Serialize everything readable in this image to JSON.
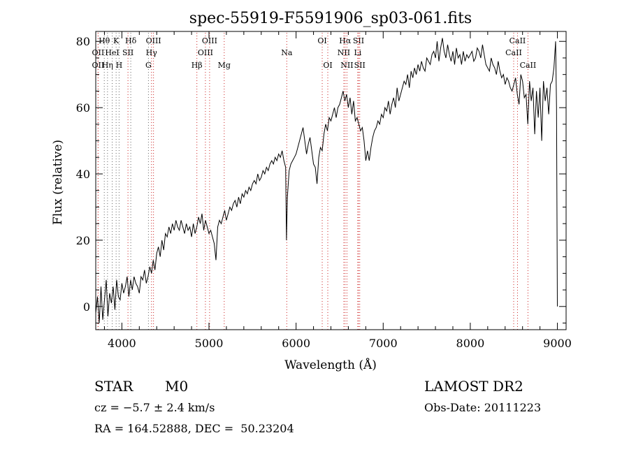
{
  "chart_data": {
    "type": "line",
    "title": "spec-55919-F5591906_sp03-061.fits",
    "xlabel": "Wavelength (Å)",
    "ylabel": "Flux (relative)",
    "xlim": [
      3700,
      9100
    ],
    "ylim": [
      -7,
      83
    ],
    "xticks": [
      4000,
      5000,
      6000,
      7000,
      8000,
      9000
    ],
    "yticks": [
      0,
      20,
      40,
      60,
      80
    ],
    "grid": false,
    "line_markers": [
      {
        "label": "Hθ",
        "x": 3798,
        "row": 1,
        "color": "#666666"
      },
      {
        "label": "K",
        "x": 3934,
        "row": 1,
        "color": "#666666"
      },
      {
        "label": "Hδ",
        "x": 4102,
        "row": 1,
        "color": "#666666"
      },
      {
        "label": "OIII",
        "x": 4363,
        "row": 1,
        "color": "#cc2222"
      },
      {
        "label": "OIII",
        "x": 5007,
        "row": 1,
        "color": "#cc2222"
      },
      {
        "label": "OI",
        "x": 6300,
        "row": 1,
        "color": "#cc2222"
      },
      {
        "label": "Hα",
        "x": 6563,
        "row": 1,
        "color": "#cc2222"
      },
      {
        "label": "SII",
        "x": 6717,
        "row": 1,
        "color": "#cc2222"
      },
      {
        "label": "CaII",
        "x": 8542,
        "row": 1,
        "color": "#cc2222"
      },
      {
        "label": "OII",
        "x": 3727,
        "row": 2,
        "color": "#cc2222"
      },
      {
        "label": "HeI",
        "x": 3889,
        "row": 2,
        "color": "#666666"
      },
      {
        "label": "SII",
        "x": 4070,
        "row": 2,
        "color": "#cc2222"
      },
      {
        "label": "Hγ",
        "x": 4340,
        "row": 2,
        "color": "#cc2222"
      },
      {
        "label": "OIII",
        "x": 4959,
        "row": 2,
        "color": "#cc2222"
      },
      {
        "label": "Na",
        "x": 5893,
        "row": 2,
        "color": "#cc2222"
      },
      {
        "label": "NII",
        "x": 6548,
        "row": 2,
        "color": "#cc2222"
      },
      {
        "label": "Li",
        "x": 6708,
        "row": 2,
        "color": "#cc2222"
      },
      {
        "label": "CaII",
        "x": 8498,
        "row": 2,
        "color": "#cc2222"
      },
      {
        "label": "OII",
        "x": 3727,
        "row": 3,
        "color": "#cc2222"
      },
      {
        "label": "Hη",
        "x": 3835,
        "row": 3,
        "color": "#666666"
      },
      {
        "label": "H",
        "x": 3968,
        "row": 3,
        "color": "#666666"
      },
      {
        "label": "G",
        "x": 4305,
        "row": 3,
        "color": "#666666"
      },
      {
        "label": "Hβ",
        "x": 4861,
        "row": 3,
        "color": "#cc2222"
      },
      {
        "label": "Mg",
        "x": 5175,
        "row": 3,
        "color": "#cc2222"
      },
      {
        "label": "OI",
        "x": 6364,
        "row": 3,
        "color": "#cc2222"
      },
      {
        "label": "NII",
        "x": 6584,
        "row": 3,
        "color": "#cc2222"
      },
      {
        "label": "SII",
        "x": 6731,
        "row": 3,
        "color": "#cc2222"
      },
      {
        "label": "CaII",
        "x": 8662,
        "row": 3,
        "color": "#cc2222"
      }
    ],
    "series": [
      {
        "x": [
          3700,
          3720,
          3740,
          3760,
          3780,
          3800,
          3820,
          3840,
          3860,
          3880,
          3900,
          3920,
          3940,
          3960,
          3980,
          4000,
          4020,
          4040,
          4060,
          4080,
          4100,
          4120,
          4140,
          4160,
          4180,
          4200,
          4220,
          4240,
          4260,
          4280,
          4300,
          4320,
          4340,
          4360,
          4380,
          4400,
          4420,
          4440,
          4460,
          4480,
          4500,
          4520,
          4540,
          4560,
          4580,
          4600,
          4620,
          4640,
          4660,
          4680,
          4700,
          4720,
          4740,
          4760,
          4780,
          4800,
          4820,
          4840,
          4860,
          4880,
          4900,
          4920,
          4940,
          4960,
          4980,
          5000,
          5020,
          5040,
          5060,
          5080,
          5100,
          5120,
          5140,
          5160,
          5180,
          5200,
          5220,
          5240,
          5260,
          5280,
          5300,
          5320,
          5340,
          5360,
          5380,
          5400,
          5420,
          5440,
          5460,
          5480,
          5500,
          5520,
          5540,
          5560,
          5580,
          5600,
          5620,
          5640,
          5660,
          5680,
          5700,
          5720,
          5740,
          5760,
          5780,
          5800,
          5820,
          5840,
          5860,
          5880,
          5890,
          5900,
          5920,
          5940,
          5960,
          5980,
          6000,
          6020,
          6040,
          6060,
          6080,
          6100,
          6120,
          6140,
          6160,
          6180,
          6200,
          6220,
          6240,
          6260,
          6280,
          6300,
          6320,
          6340,
          6360,
          6380,
          6400,
          6420,
          6440,
          6460,
          6480,
          6500,
          6520,
          6540,
          6560,
          6580,
          6600,
          6620,
          6640,
          6660,
          6680,
          6700,
          6720,
          6740,
          6760,
          6780,
          6800,
          6820,
          6840,
          6860,
          6880,
          6900,
          6920,
          6940,
          6960,
          6980,
          7000,
          7020,
          7040,
          7060,
          7080,
          7100,
          7120,
          7140,
          7160,
          7180,
          7200,
          7220,
          7240,
          7260,
          7280,
          7300,
          7320,
          7340,
          7360,
          7380,
          7400,
          7420,
          7440,
          7460,
          7480,
          7500,
          7520,
          7540,
          7560,
          7580,
          7600,
          7620,
          7640,
          7660,
          7680,
          7700,
          7720,
          7740,
          7760,
          7780,
          7800,
          7820,
          7840,
          7860,
          7880,
          7900,
          7920,
          7940,
          7960,
          7980,
          8000,
          8020,
          8040,
          8060,
          8080,
          8100,
          8120,
          8140,
          8160,
          8180,
          8200,
          8220,
          8240,
          8260,
          8280,
          8300,
          8320,
          8340,
          8360,
          8380,
          8400,
          8420,
          8440,
          8460,
          8480,
          8500,
          8520,
          8540,
          8560,
          8580,
          8600,
          8620,
          8640,
          8660,
          8680,
          8700,
          8720,
          8740,
          8760,
          8780,
          8800,
          8820,
          8840,
          8860,
          8880,
          8900,
          8920,
          8940,
          8960,
          8980,
          8990,
          9000
        ],
        "y": [
          -2,
          3,
          -5,
          6,
          -4,
          2,
          8,
          -3,
          4,
          1,
          6,
          -1,
          8,
          3,
          2,
          7,
          4,
          6,
          9,
          3,
          8,
          5,
          9,
          7,
          6,
          4,
          9,
          8,
          11,
          7,
          9,
          12,
          10,
          14,
          11,
          16,
          18,
          15,
          20,
          17,
          22,
          21,
          24,
          22,
          25,
          23,
          26,
          24,
          23,
          26,
          24,
          22,
          25,
          23,
          24,
          21,
          25,
          22,
          24,
          27,
          25,
          28,
          23,
          26,
          24,
          22,
          23,
          21,
          19,
          14,
          24,
          26,
          25,
          27,
          29,
          26,
          28,
          30,
          29,
          31,
          32,
          30,
          33,
          31,
          34,
          33,
          35,
          34,
          36,
          35,
          37,
          38,
          37,
          40,
          38,
          39,
          41,
          40,
          42,
          41,
          43,
          44,
          43,
          45,
          44,
          46,
          45,
          47,
          44,
          42,
          20,
          33,
          41,
          43,
          44,
          45,
          46,
          48,
          50,
          52,
          54,
          50,
          46,
          49,
          51,
          47,
          43,
          42,
          37,
          45,
          48,
          47,
          52,
          55,
          53,
          57,
          56,
          58,
          60,
          57,
          60,
          61,
          63,
          65,
          62,
          64,
          60,
          63,
          58,
          62,
          56,
          57,
          55,
          53,
          54,
          50,
          44,
          47,
          44,
          48,
          51,
          53,
          54,
          56,
          55,
          58,
          57,
          60,
          59,
          62,
          58,
          61,
          63,
          60,
          66,
          62,
          64,
          66,
          68,
          67,
          70,
          66,
          71,
          69,
          72,
          70,
          73,
          71,
          74,
          72,
          71,
          75,
          74,
          73,
          76,
          77,
          75,
          80,
          74,
          78,
          81,
          77,
          75,
          79,
          76,
          74,
          77,
          73,
          78,
          75,
          76,
          73,
          77,
          74,
          76,
          75,
          76,
          77,
          74,
          75,
          78,
          77,
          75,
          79,
          76,
          73,
          72,
          71,
          75,
          73,
          72,
          70,
          74,
          71,
          69,
          70,
          67,
          69,
          68,
          66,
          65,
          67,
          69,
          64,
          61,
          70,
          68,
          63,
          64,
          55,
          68,
          62,
          66,
          52,
          65,
          57,
          66,
          50,
          68,
          62,
          66,
          58,
          67,
          68,
          72,
          80,
          60,
          0
        ]
      }
    ]
  },
  "info": {
    "object_class": "STAR",
    "subclass": "M0",
    "survey": "LAMOST DR2",
    "velocity": "cz = −5.7 ± 2.4 km/s",
    "obs_date": "Obs-Date: 20111223",
    "coords": "RA = 164.52888, DEC =  50.23204"
  }
}
